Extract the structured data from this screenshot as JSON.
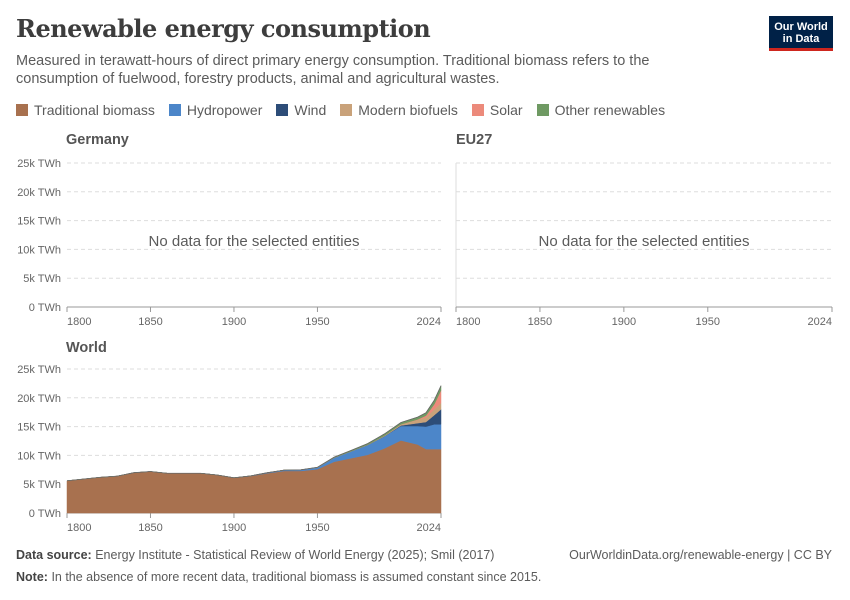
{
  "header": {
    "title": "Renewable energy consumption",
    "subtitle": "Measured in terawatt-hours of direct primary energy consumption. Traditional biomass refers to the consumption of fuelwood, forestry products, animal and agricultural wastes.",
    "logo": "Our World in Data"
  },
  "legend": [
    {
      "name": "Traditional biomass",
      "color": "#a8714f"
    },
    {
      "name": "Hydropower",
      "color": "#4c86c9"
    },
    {
      "name": "Wind",
      "color": "#2d4d78"
    },
    {
      "name": "Modern biofuels",
      "color": "#c9a27a"
    },
    {
      "name": "Solar",
      "color": "#ec8a7b"
    },
    {
      "name": "Other renewables",
      "color": "#6f9a63"
    }
  ],
  "panels": {
    "germany": {
      "title": "Germany",
      "message": "No data for the selected entities"
    },
    "eu27": {
      "title": "EU27",
      "message": "No data for the selected entities"
    },
    "world": {
      "title": "World"
    }
  },
  "chart_data": {
    "type": "area",
    "stacked": true,
    "ylim": [
      0,
      25000
    ],
    "xlim": [
      1800,
      2024
    ],
    "grid": "horizontal dashed",
    "y_ticks": [
      "0 TWh",
      "5k TWh",
      "10k TWh",
      "15k TWh",
      "20k TWh",
      "25k TWh"
    ],
    "x_ticks": [
      "1800",
      "1850",
      "1900",
      "1950",
      "2024"
    ],
    "x": [
      1800,
      1810,
      1820,
      1830,
      1840,
      1850,
      1860,
      1870,
      1880,
      1890,
      1900,
      1910,
      1920,
      1930,
      1940,
      1950,
      1960,
      1970,
      1980,
      1990,
      2000,
      2010,
      2015,
      2020,
      2024
    ],
    "series": [
      {
        "name": "Traditional biomass",
        "values": [
          5600,
          5900,
          6200,
          6400,
          7000,
          7200,
          6900,
          6900,
          6900,
          6600,
          6100,
          6400,
          6900,
          7300,
          7300,
          7600,
          8900,
          9500,
          10100,
          11200,
          12600,
          11900,
          11100,
          11100,
          11100
        ]
      },
      {
        "name": "Hydropower",
        "values": [
          0,
          0,
          0,
          0,
          0,
          0,
          0,
          0,
          0,
          0,
          20,
          50,
          100,
          150,
          200,
          300,
          700,
          1200,
          1700,
          2100,
          2500,
          3200,
          3900,
          4300,
          4300
        ]
      },
      {
        "name": "Wind",
        "values": [
          0,
          0,
          0,
          0,
          0,
          0,
          0,
          0,
          0,
          0,
          0,
          0,
          0,
          0,
          0,
          0,
          0,
          0,
          0,
          10,
          100,
          500,
          800,
          1600,
          2600
        ]
      },
      {
        "name": "Modern biofuels",
        "values": [
          0,
          0,
          0,
          0,
          0,
          0,
          0,
          0,
          0,
          0,
          0,
          0,
          0,
          0,
          0,
          0,
          0,
          0,
          50,
          100,
          200,
          600,
          800,
          1000,
          1100
        ]
      },
      {
        "name": "Solar",
        "values": [
          0,
          0,
          0,
          0,
          0,
          0,
          0,
          0,
          0,
          0,
          0,
          0,
          0,
          0,
          0,
          0,
          0,
          0,
          0,
          0,
          5,
          50,
          300,
          900,
          2200
        ]
      },
      {
        "name": "Other renewables",
        "values": [
          0,
          0,
          0,
          0,
          0,
          0,
          0,
          0,
          0,
          0,
          0,
          0,
          0,
          0,
          0,
          50,
          100,
          150,
          200,
          300,
          300,
          400,
          500,
          700,
          800
        ]
      }
    ]
  },
  "footer": {
    "source_label": "Data source:",
    "source": "Energy Institute - Statistical Review of World Energy (2025); Smil (2017)",
    "url": "OurWorldinData.org/renewable-energy | CC BY",
    "note_label": "Note:",
    "note": "In the absence of more recent data, traditional biomass is assumed constant since 2015."
  }
}
